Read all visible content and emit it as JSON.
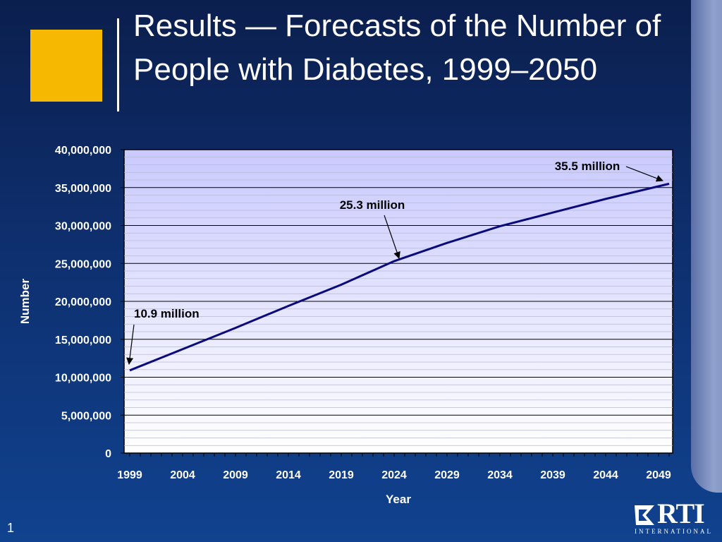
{
  "slide": {
    "title": "Results — Forecasts of the Number of People with Diabetes, 1999–2050",
    "page_number": "1",
    "logo": {
      "text": "RTI",
      "subtitle": "INTERNATIONAL"
    },
    "colors": {
      "accent": "#f6b800",
      "line": "#0a0a7a",
      "plot_top": "#c9c9ff",
      "plot_bottom": "#ffffff"
    }
  },
  "chart_data": {
    "type": "line",
    "xlabel": "Year",
    "ylabel": "Number",
    "xlim": [
      1999,
      2050
    ],
    "ylim": [
      0,
      40000000
    ],
    "x_ticks": [
      "1999",
      "2004",
      "2009",
      "2014",
      "2019",
      "2024",
      "2029",
      "2034",
      "2039",
      "2044",
      "2049"
    ],
    "y_ticks": [
      "0",
      "5,000,000",
      "10,000,000",
      "15,000,000",
      "20,000,000",
      "25,000,000",
      "30,000,000",
      "35,000,000",
      "40,000,000"
    ],
    "grid": true,
    "series": [
      {
        "x": [
          1999,
          2004,
          2009,
          2014,
          2019,
          2024,
          2029,
          2034,
          2039,
          2044,
          2050
        ],
        "values": [
          10900000,
          13700000,
          16500000,
          19400000,
          22200000,
          25300000,
          27700000,
          29900000,
          31700000,
          33500000,
          35500000
        ]
      }
    ],
    "annotations": [
      {
        "text": "10.9 million",
        "x": 1999,
        "y": 10900000
      },
      {
        "text": "25.3 million",
        "x": 2024,
        "y": 25300000
      },
      {
        "text": "35.5 million",
        "x": 2050,
        "y": 35500000
      }
    ]
  }
}
